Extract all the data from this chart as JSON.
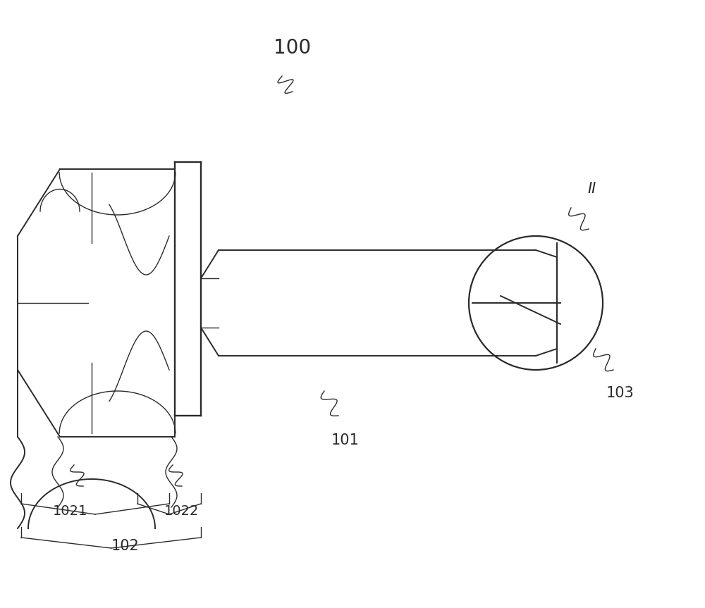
{
  "bg_color": "#ffffff",
  "line_color": "#2a2a2a",
  "lw_main": 1.4,
  "lw_thin": 1.0,
  "label_100": "100",
  "label_101": "101",
  "label_102": "102",
  "label_1021": "1021",
  "label_1022": "1022",
  "label_103": "103",
  "label_II": "II",
  "fs_large": 18,
  "fs_med": 15,
  "fs_small": 14
}
